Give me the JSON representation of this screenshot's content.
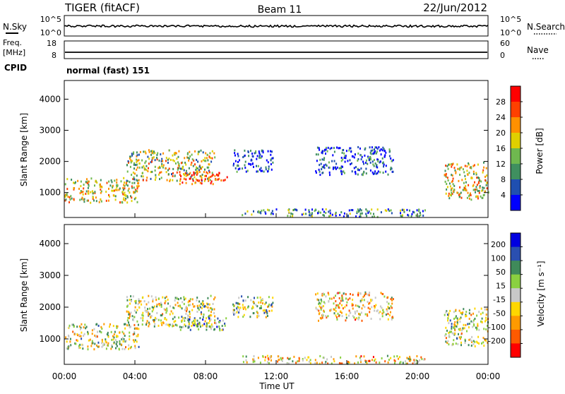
{
  "header": {
    "radar": "TIGER (fitACF)",
    "beam": "Beam 11",
    "date": "22/Jun/2012"
  },
  "strips": {
    "nsky_label": "N.Sky",
    "nsky_ticks": [
      "10^5",
      "10^0"
    ],
    "nsearch_label": "N.Search",
    "nsearch_ticks": [
      "10^5",
      "10^0"
    ],
    "freq_label_line1": "Freq.",
    "freq_label_line2": "[MHz]",
    "freq_ticks": [
      "18",
      "8"
    ],
    "nave_label": "Nave",
    "nave_ticks": [
      "60",
      "0"
    ],
    "cpid_label": "CPID",
    "cpid_value": "normal (fast) 151"
  },
  "colors": {
    "power": [
      "#0000ff",
      "#1f4fb0",
      "#3f8f5f",
      "#6fb84f",
      "#e0d000",
      "#ff9000",
      "#ff4000",
      "#ff0000"
    ],
    "velocity": [
      "#0000e0",
      "#2a4fb0",
      "#3f8a5a",
      "#8ad040",
      "#c8c8c8",
      "#ffd700",
      "#ff9a00",
      "#ff5a00",
      "#ff0000"
    ]
  },
  "chart_data": [
    {
      "type": "heatmap",
      "name": "Power",
      "ylabel": "Slant Range [km]",
      "ylim": [
        200,
        4600
      ],
      "yticks": [
        1000,
        2000,
        3000,
        4000
      ],
      "colorbar_label": "Power [dB]",
      "colorbar_ticks": [
        4,
        8,
        12,
        16,
        20,
        24,
        28
      ],
      "colorbar_range": [
        0,
        32
      ],
      "scatter_regions": [
        {
          "t": [
            0.0,
            4.2
          ],
          "r": [
            700,
            1500
          ],
          "level": 0.55
        },
        {
          "t": [
            3.5,
            8.5
          ],
          "r": [
            1400,
            2400
          ],
          "level": 0.5
        },
        {
          "t": [
            6.5,
            9.2
          ],
          "r": [
            1300,
            1700
          ],
          "level": 0.85
        },
        {
          "t": [
            9.5,
            11.8
          ],
          "r": [
            1700,
            2400
          ],
          "level": 0.15
        },
        {
          "t": [
            14.2,
            18.6
          ],
          "r": [
            1600,
            2500
          ],
          "level": 0.15
        },
        {
          "t": [
            10.0,
            20.5
          ],
          "r": [
            250,
            500
          ],
          "level": 0.3
        },
        {
          "t": [
            21.5,
            24.0
          ],
          "r": [
            800,
            2000
          ],
          "level": 0.55
        }
      ]
    },
    {
      "type": "heatmap",
      "name": "Velocity",
      "ylabel": "Slant Range [km]",
      "xlabel": "Time UT",
      "ylim": [
        200,
        4600
      ],
      "yticks": [
        1000,
        2000,
        3000,
        4000
      ],
      "xlim": [
        0,
        24
      ],
      "xtick_labels": [
        "00:00",
        "04:00",
        "08:00",
        "12:00",
        "16:00",
        "20:00",
        "00:00"
      ],
      "colorbar_label": "Velocity [m s⁻¹]",
      "colorbar_ticks": [
        "200",
        "100",
        "50",
        "15",
        "-15",
        "-50",
        "-100",
        "-200"
      ],
      "scatter_regions": [
        {
          "t": [
            0.0,
            4.2
          ],
          "r": [
            700,
            1500
          ],
          "level": 0.5
        },
        {
          "t": [
            3.5,
            8.5
          ],
          "r": [
            1400,
            2400
          ],
          "level": 0.5
        },
        {
          "t": [
            6.5,
            9.2
          ],
          "r": [
            1300,
            1700
          ],
          "level": 0.3
        },
        {
          "t": [
            9.5,
            11.8
          ],
          "r": [
            1700,
            2400
          ],
          "level": 0.45
        },
        {
          "t": [
            14.2,
            18.6
          ],
          "r": [
            1600,
            2500
          ],
          "level": 0.6
        },
        {
          "t": [
            10.0,
            20.5
          ],
          "r": [
            250,
            500
          ],
          "level": 0.6
        },
        {
          "t": [
            21.5,
            24.0
          ],
          "r": [
            800,
            2000
          ],
          "level": 0.5
        }
      ]
    }
  ]
}
